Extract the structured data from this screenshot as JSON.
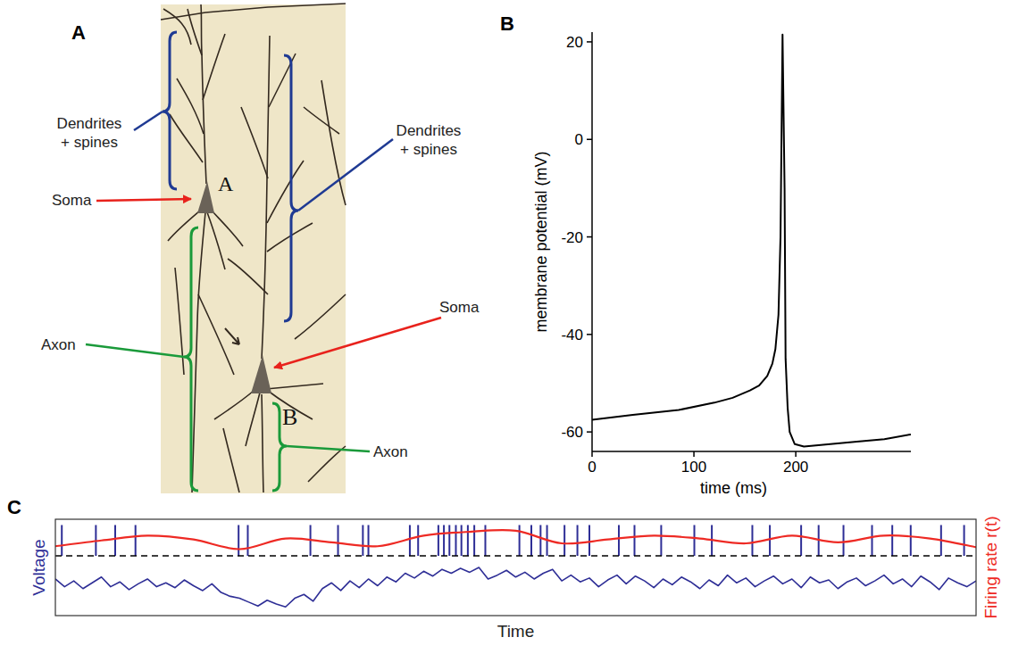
{
  "panel_letters": [
    "A",
    "B",
    "C"
  ],
  "panel_a": {
    "cell_labels": [
      "A",
      "B"
    ],
    "dendrites_label_left": "Dendrites + spines",
    "dendrites_label_right": "Dendrites + spines",
    "soma_label_left": "Soma",
    "soma_label_right": "Soma",
    "axon_label_left": "Axon",
    "axon_label_right": "Axon"
  },
  "chart_data": [
    {
      "type": "line",
      "x_label": "time (ms)",
      "y_label": "membrane potential (mV)",
      "x": [
        0,
        40,
        85,
        120,
        138,
        155,
        164,
        172,
        177,
        180,
        183,
        185,
        187,
        189,
        190,
        192,
        194,
        199,
        208,
        234,
        260,
        287,
        313
      ],
      "values": [
        -57.5,
        -56.5,
        -55.5,
        -54,
        -53,
        -51.5,
        -50.5,
        -48.5,
        -46,
        -43,
        -36,
        -20,
        21.5,
        -10,
        -45,
        -55,
        -60,
        -62.5,
        -63,
        -62.5,
        -62,
        -61.5,
        -60.5
      ],
      "color": "#000000",
      "xlim": [
        0,
        313
      ],
      "ylim": [
        -64,
        22
      ],
      "xticks": [
        0,
        100,
        200
      ],
      "yticks": [
        -60,
        -40,
        -20,
        0,
        20
      ]
    },
    {
      "type": "line",
      "x_label": "Time",
      "y_label": "Voltage",
      "y2_label": "Firing rate r(t)",
      "tick_labels": false,
      "xlim": [
        0,
        100
      ],
      "ylim": [
        0,
        100
      ],
      "y2lim": [
        0,
        100
      ],
      "threshold": 62,
      "series": [
        {
          "type": "line",
          "color": "#2e2e96",
          "x": [
            0,
            1,
            2,
            3,
            4,
            5,
            6,
            7,
            8,
            9,
            10,
            11,
            12,
            13,
            14,
            15,
            16,
            17,
            18,
            19,
            20,
            21,
            22,
            23,
            24,
            25,
            26,
            27,
            28,
            29,
            30,
            31,
            32,
            33,
            34,
            35,
            36,
            37,
            38,
            39,
            40,
            41,
            42,
            43,
            44,
            45,
            46,
            47,
            48,
            49,
            50,
            51,
            52,
            53,
            54,
            55,
            56,
            57,
            58,
            59,
            60,
            61,
            62,
            63,
            64,
            65,
            66,
            67,
            68,
            69,
            70,
            71,
            72,
            73,
            74,
            75,
            76,
            77,
            78,
            79,
            80,
            81,
            82,
            83,
            84,
            85,
            86,
            87,
            88,
            89,
            90,
            91,
            92,
            93,
            94,
            95,
            96,
            97,
            98,
            99,
            100
          ],
          "values": [
            38,
            30,
            36,
            28,
            34,
            40,
            30,
            35,
            27,
            33,
            38,
            30,
            34,
            29,
            37,
            31,
            26,
            33,
            24,
            20,
            18,
            14,
            10,
            16,
            12,
            9,
            18,
            22,
            15,
            28,
            34,
            26,
            36,
            29,
            38,
            31,
            40,
            35,
            44,
            39,
            46,
            41,
            48,
            44,
            49,
            45,
            50,
            38,
            42,
            47,
            40,
            45,
            38,
            44,
            48,
            36,
            42,
            35,
            39,
            30,
            37,
            42,
            33,
            41,
            36,
            29,
            38,
            32,
            40,
            35,
            28,
            37,
            31,
            42,
            34,
            39,
            30,
            36,
            41,
            33,
            38,
            29,
            40,
            34,
            37,
            28,
            35,
            39,
            31,
            36,
            42,
            33,
            38,
            30,
            41,
            35,
            27,
            39,
            34,
            30,
            36
          ]
        },
        {
          "type": "spike",
          "color": "#2e2e96",
          "x": [
            0.7,
            4.4,
            6.5,
            8.7,
            19.9,
            20.9,
            27.7,
            30.7,
            33.4,
            34.0,
            38.5,
            39.4,
            41.6,
            42.2,
            42.8,
            43.5,
            44.1,
            44.8,
            45.5,
            46.7,
            50.4,
            51.7,
            52.7,
            53.4,
            55.3,
            56.7,
            58.0,
            61.2,
            62.9,
            65.8,
            69.4,
            71.3,
            75.7,
            77.6,
            81.0,
            82.9,
            85.6,
            88.7,
            90.9,
            92.9,
            96.2,
            98.7
          ],
          "values": [
            94,
            94,
            94,
            94,
            94,
            94,
            94,
            94,
            94,
            94,
            94,
            94,
            94,
            94,
            94,
            94,
            94,
            94,
            94,
            94,
            94,
            94,
            94,
            94,
            94,
            94,
            94,
            94,
            94,
            94,
            94,
            94,
            94,
            94,
            94,
            94,
            94,
            94,
            94,
            94,
            94,
            94
          ]
        },
        {
          "type": "line",
          "color": "#ee2a24",
          "axis": "y2",
          "x": [
            0,
            5,
            10,
            15,
            20,
            25,
            30,
            35,
            40,
            45,
            50,
            55,
            60,
            65,
            70,
            75,
            80,
            85,
            90,
            95,
            100
          ],
          "values": [
            72,
            78,
            83,
            79,
            69,
            80,
            76,
            72,
            83,
            87,
            88,
            75,
            79,
            83,
            80,
            75,
            83,
            76,
            83,
            80,
            71
          ]
        }
      ]
    }
  ]
}
